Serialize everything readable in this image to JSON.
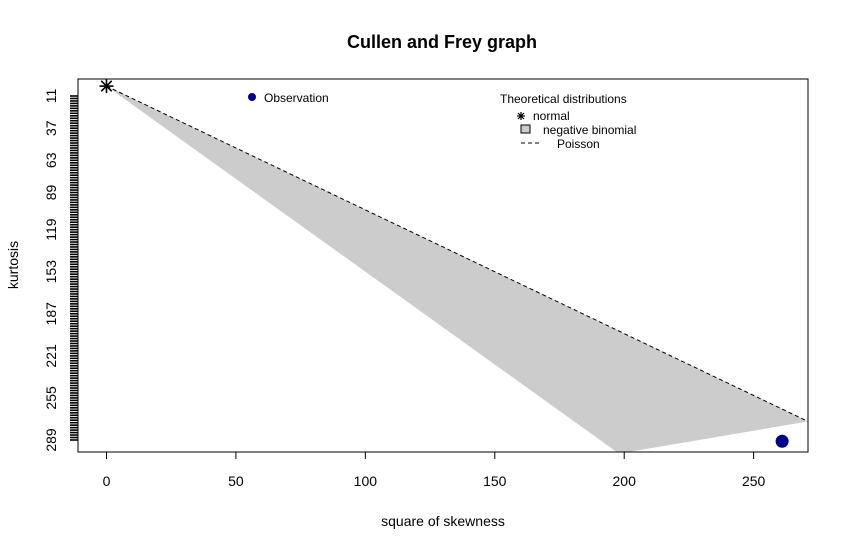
{
  "chart_data": {
    "type": "scatter",
    "title": "Cullen and Frey graph",
    "xlabel": "square of skewness",
    "ylabel": "kurtosis",
    "xlim": [
      -11,
      271
    ],
    "x_ticks": [
      0,
      50,
      100,
      150,
      200,
      250
    ],
    "y_tick_labels": [
      "11",
      "37",
      "63",
      "89",
      "119",
      "153",
      "187",
      "221",
      "255",
      "289"
    ],
    "y_reversed": true,
    "grid": false,
    "observation": {
      "name": "Observation",
      "x": 261,
      "y": 290,
      "color": "#00008B"
    },
    "normal": {
      "name": "normal",
      "x": 0,
      "y": 3
    },
    "poisson_line": {
      "name": "Poisson",
      "style": "dashed",
      "points": [
        [
          0,
          3
        ],
        [
          271,
          274
        ]
      ]
    },
    "negative_binomial_region": {
      "name": "negative binomial",
      "color": "#CCCCCC",
      "upper_boundary": [
        [
          0,
          3
        ],
        [
          271,
          274
        ]
      ],
      "lower_boundary": [
        [
          0,
          3
        ],
        [
          198,
          300
        ]
      ]
    },
    "legend": {
      "observation_label": "Observation",
      "observation_placement": "top-left",
      "theoretical_title": "Theoretical distributions",
      "theoretical_placement": "top-right",
      "items": [
        "normal",
        "negative binomial",
        "Poisson"
      ]
    }
  }
}
